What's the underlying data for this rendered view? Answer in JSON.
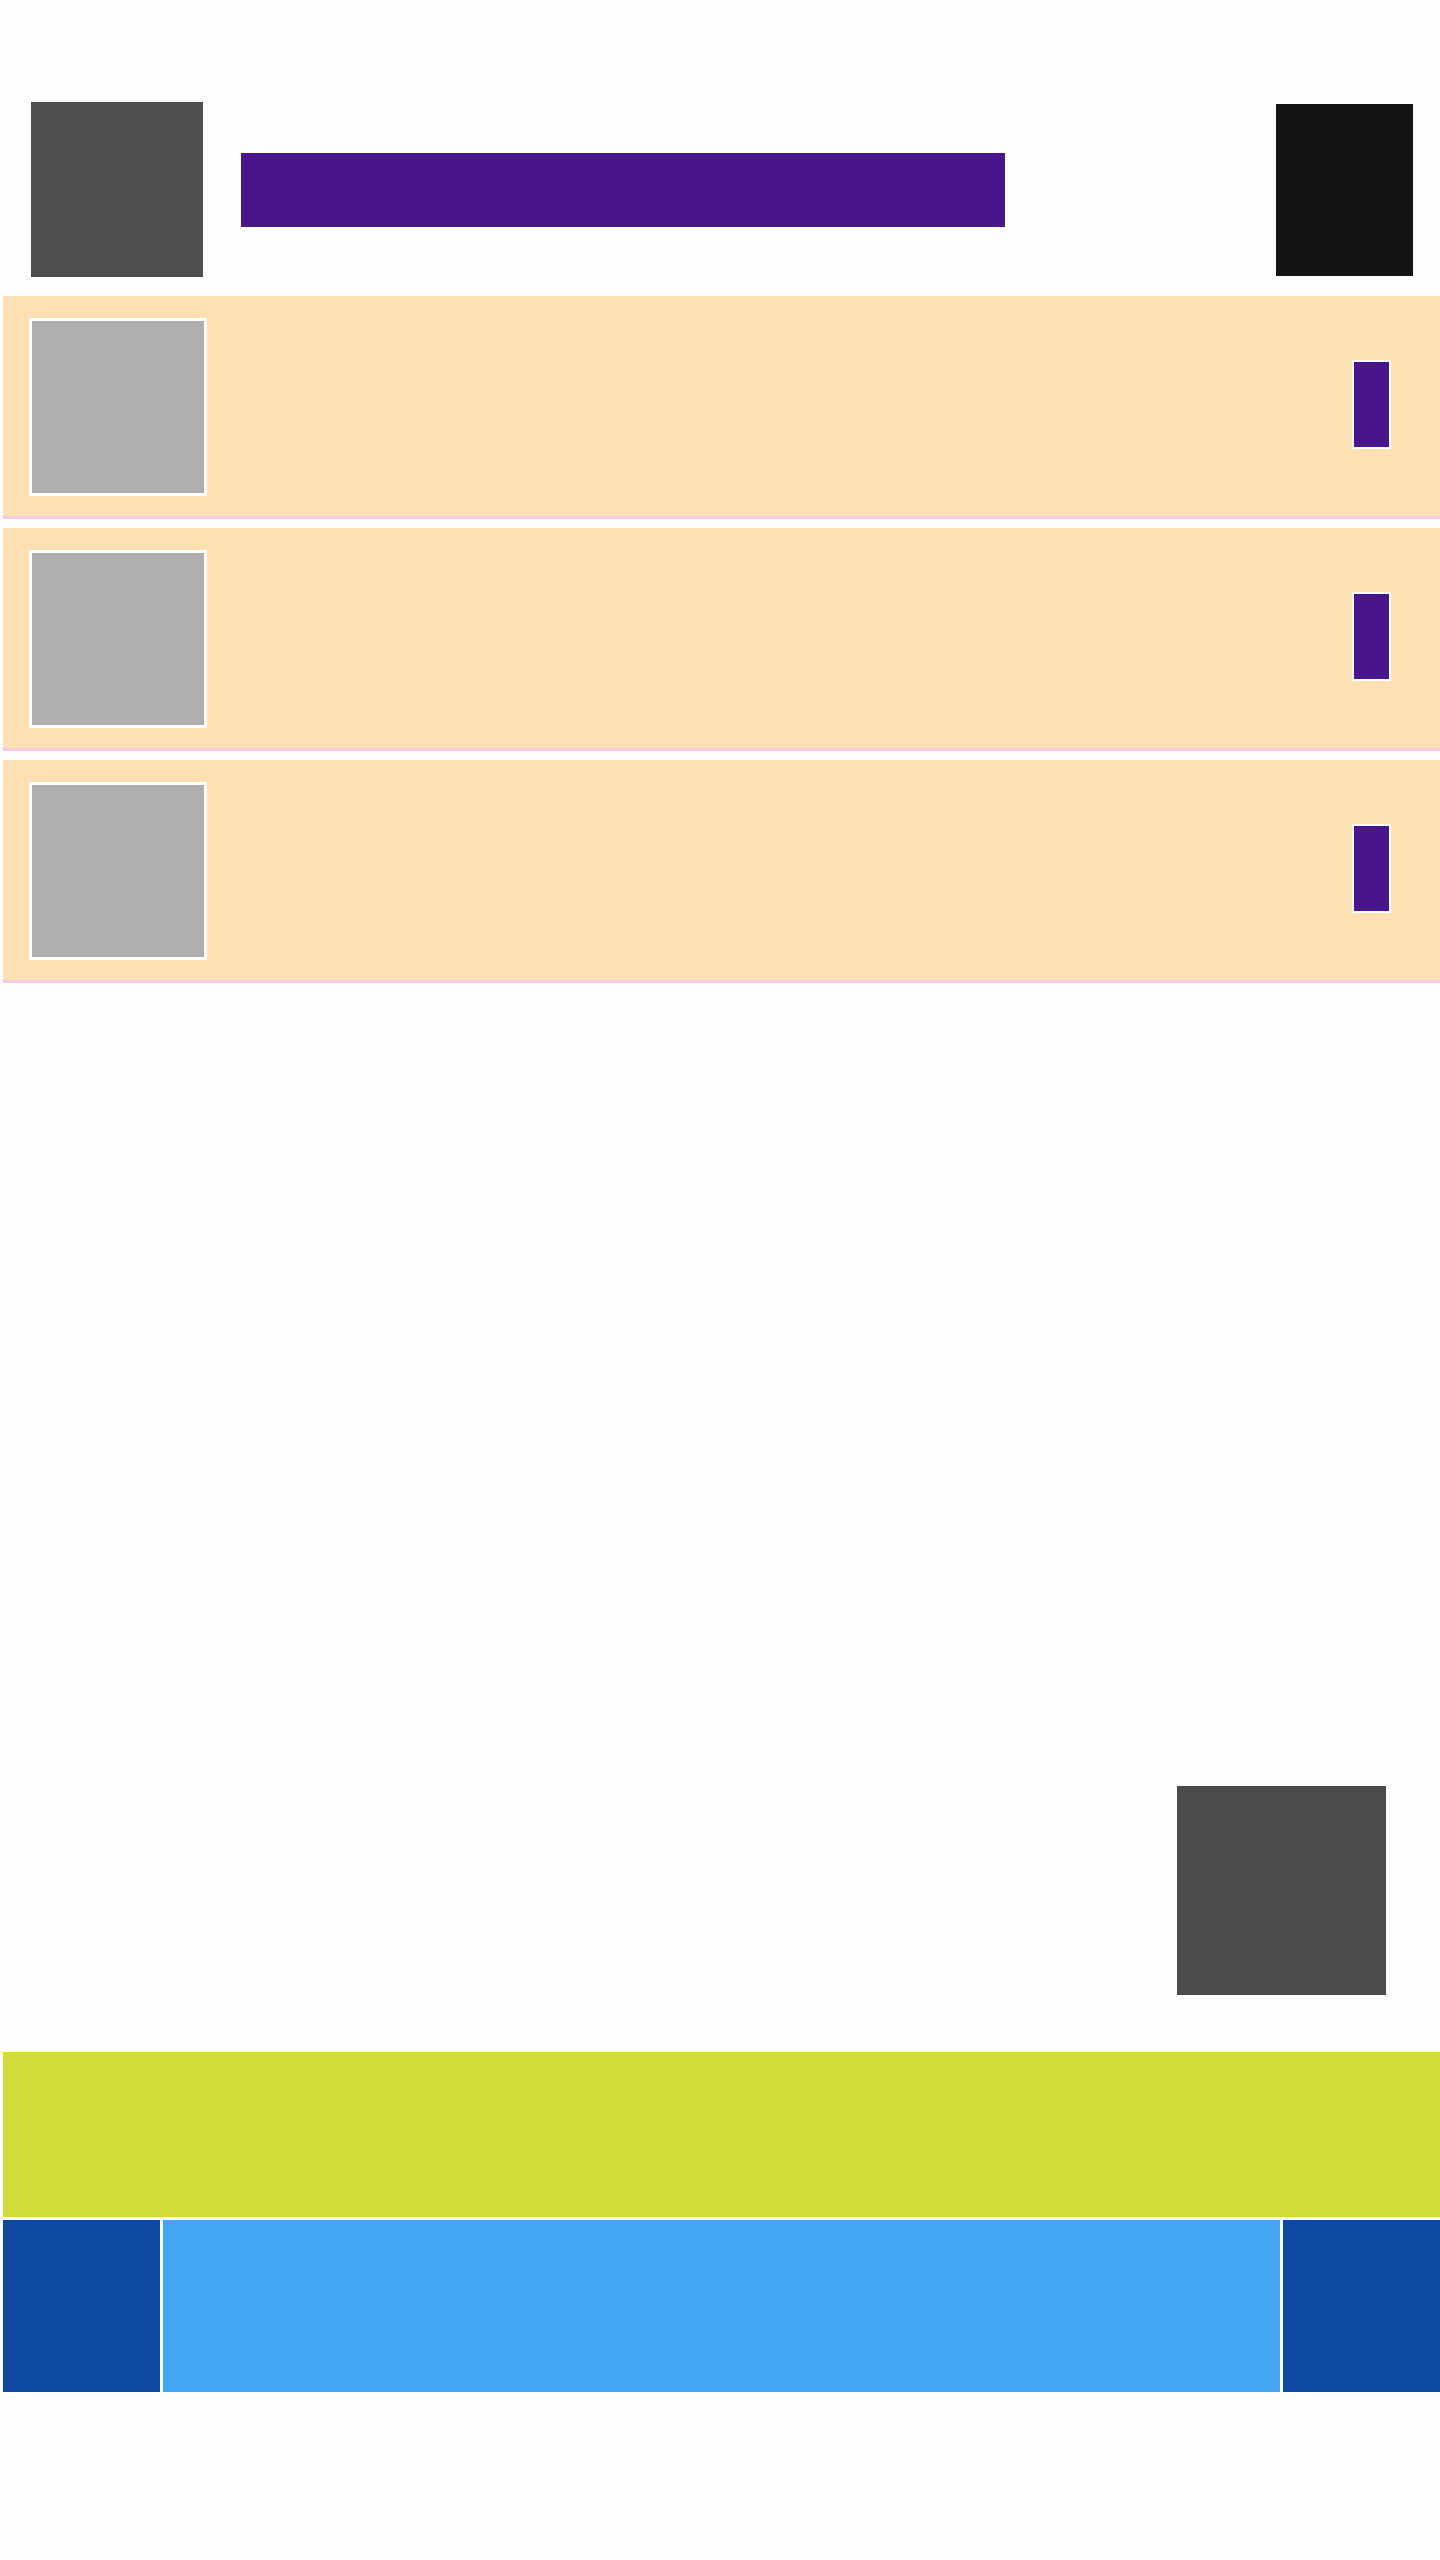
{
  "header": {
    "left_button_label": "",
    "title": "",
    "right_button_label": ""
  },
  "list": {
    "items": [
      {
        "label": "",
        "thumbnail_alt": ""
      },
      {
        "label": "",
        "thumbnail_alt": ""
      },
      {
        "label": "",
        "thumbnail_alt": ""
      }
    ]
  },
  "floating_action": {
    "label": ""
  },
  "banner": {
    "text": ""
  },
  "bottom_nav": {
    "left_label": "",
    "center_label": "",
    "right_label": ""
  },
  "colors": {
    "page_background": "#fdfdfd",
    "header_left": "#4e4e4e",
    "header_title_bar": "#4a148c",
    "header_right": "#141414",
    "row_background": "#fde0b3",
    "row_divider": "#f3c9e1",
    "thumbnail": "#aeaeae",
    "row_action": "#4a148c",
    "fab": "#4b4b4b",
    "banner": "#cfdc39",
    "nav_side": "#0e4aa1",
    "nav_center": "#43a6f5"
  }
}
